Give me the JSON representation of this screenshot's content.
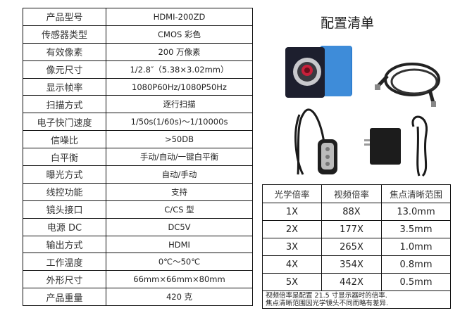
{
  "spec_table": [
    {
      "label": "产品型号",
      "value": "HDMI-200ZD"
    },
    {
      "label": "传感器类型",
      "value": "CMOS 彩色"
    },
    {
      "label": "有效像素",
      "value": "200 万像素"
    },
    {
      "label": "像元尺寸",
      "value": "1/2.8″（5.38×3.02mm）"
    },
    {
      "label": "显示帧率",
      "value": "1080P60Hz/1080P50Hz"
    },
    {
      "label": "扫描方式",
      "value": "逐行扫描"
    },
    {
      "label": "电子快门速度",
      "value": "1/50s(1/60s)～1/10000s"
    },
    {
      "label": "信噪比",
      "value": ">50DB"
    },
    {
      "label": "白平衡",
      "value": "手动/自动/一键白平衡"
    },
    {
      "label": "曝光方式",
      "value": "自动/手动"
    },
    {
      "label": "线控功能",
      "value": "支持"
    },
    {
      "label": "镜头接口",
      "value": "C/CS 型"
    },
    {
      "label": "电源 DC",
      "value": "DC5V"
    },
    {
      "label": "输出方式",
      "value": "HDMI"
    },
    {
      "label": "工作温度",
      "value": "0℃～50℃"
    },
    {
      "label": "外形尺寸",
      "value": "66mm×66mm×80mm"
    },
    {
      "label": "产品重量",
      "value": "420 克"
    }
  ],
  "package": {
    "title": "配置清单",
    "items": [
      "camera",
      "hdmi-cable",
      "wired-controller",
      "power-adapter"
    ],
    "camera_color": "#2f7fd0"
  },
  "optics_table": {
    "headers": [
      "光学倍率",
      "视频倍率",
      "焦点清晰范围"
    ],
    "rows": [
      [
        "1X",
        "88X",
        "13.0mm"
      ],
      [
        "2X",
        "177X",
        "3.5mm"
      ],
      [
        "3X",
        "265X",
        "1.0mm"
      ],
      [
        "4X",
        "354X",
        "0.8mm"
      ],
      [
        "5X",
        "442X",
        "0.5mm"
      ]
    ],
    "notes": [
      "视频倍率是配置 21.5 寸显示器时的倍率.",
      "焦点清晰范围因光学镜头不同而略有差异."
    ]
  }
}
